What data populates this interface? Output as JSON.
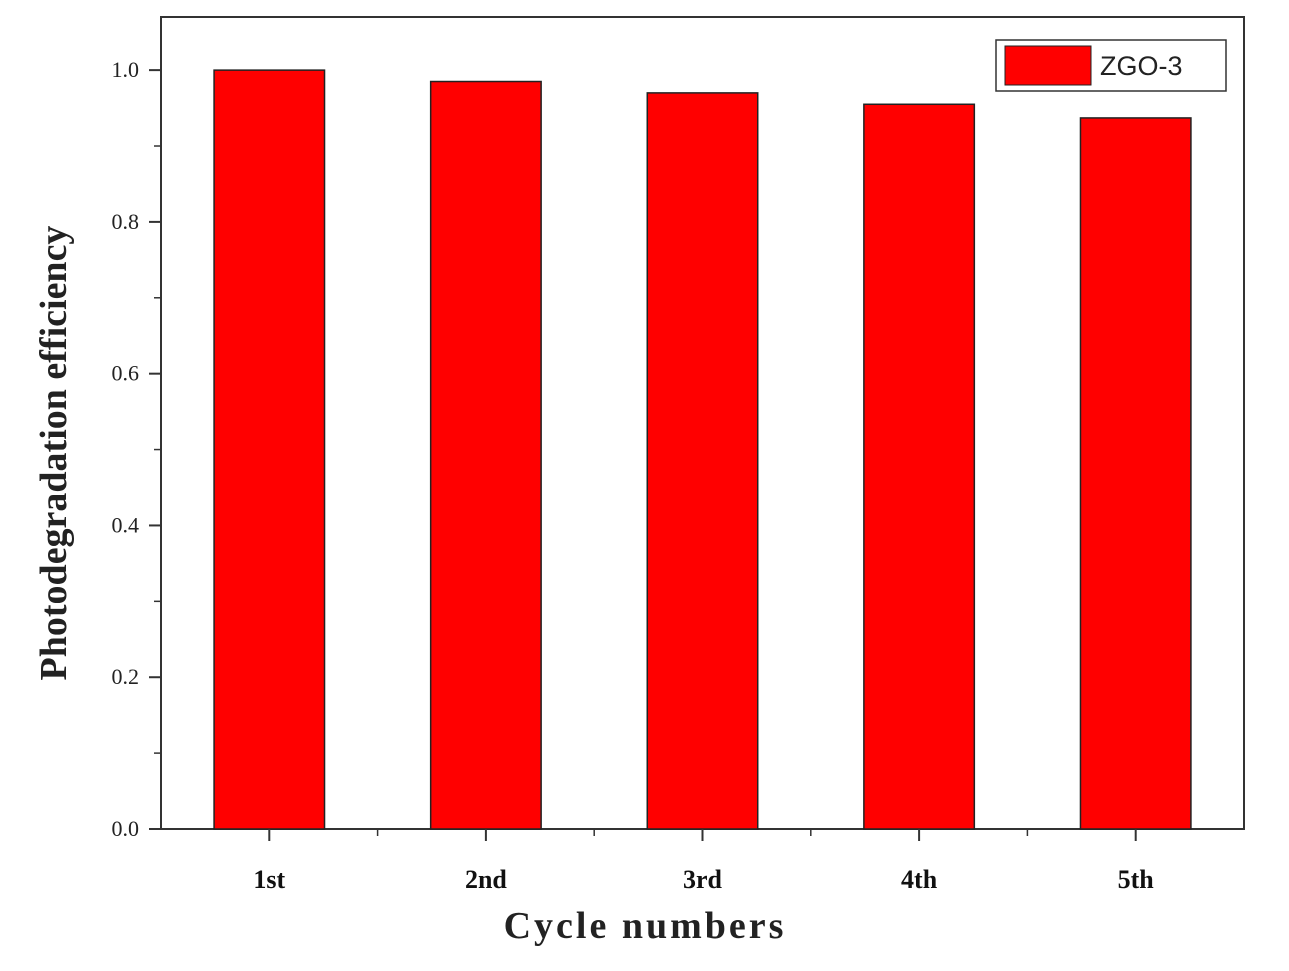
{
  "chart_data": {
    "type": "bar",
    "categories": [
      "1st",
      "2nd",
      "3rd",
      "4th",
      "5th"
    ],
    "series": [
      {
        "name": "ZGO-3",
        "values": [
          1.0,
          0.985,
          0.97,
          0.955,
          0.937
        ]
      }
    ],
    "xlabel": "Cycle numbers",
    "ylabel": "Photodegradation efficiency",
    "ylim": [
      0.0,
      1.07
    ],
    "yticks": [
      "0.0",
      "0.2",
      "0.4",
      "0.6",
      "0.8",
      "1.0"
    ],
    "grid": false,
    "legend_position": "top-right",
    "colors": {
      "bar": "#ff0000",
      "bar_stroke": "#222222",
      "axis": "#333333"
    }
  }
}
